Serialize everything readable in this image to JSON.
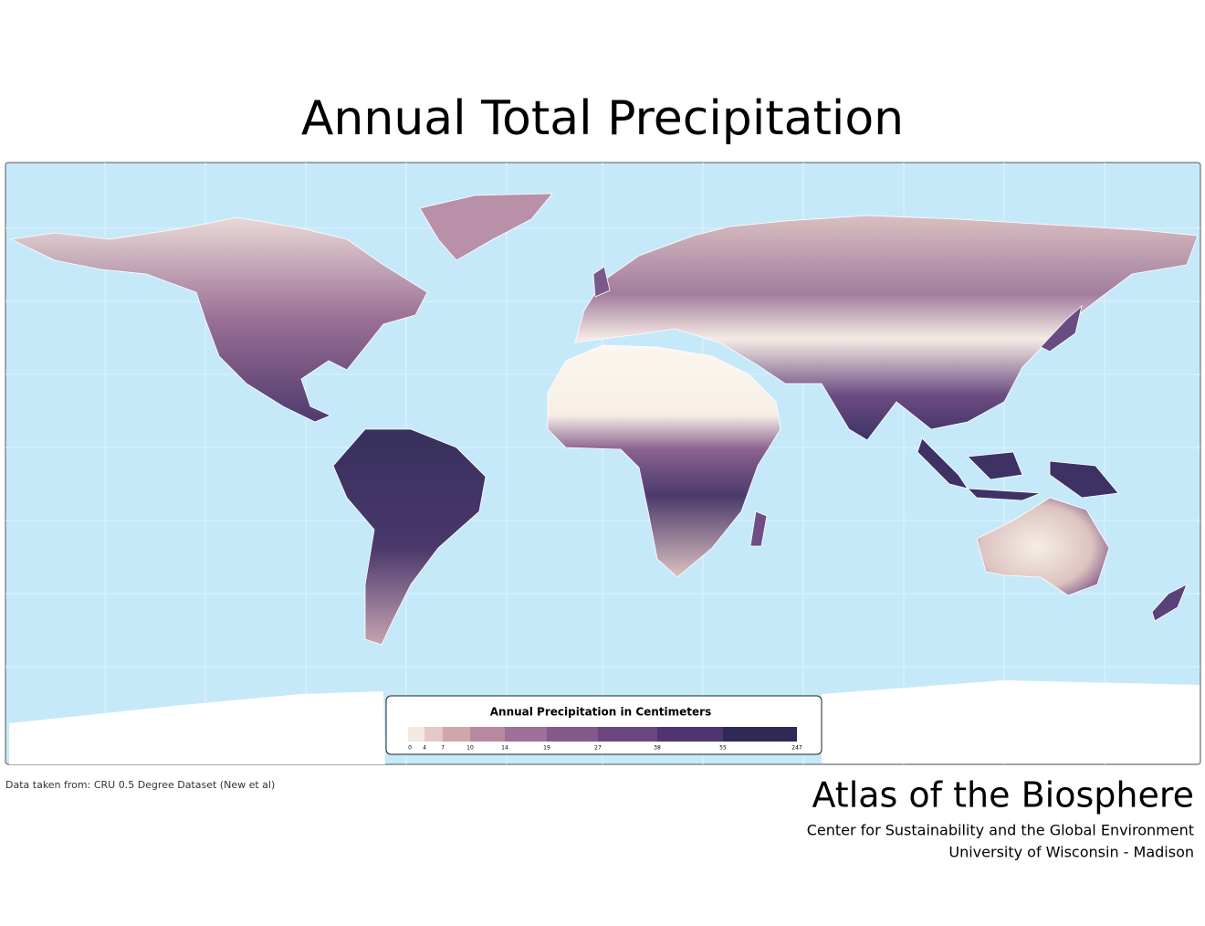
{
  "title": "Annual Total Precipitation",
  "legend": {
    "title": "Annual Precipitation in Centimeters",
    "breaks": [
      0,
      4,
      7,
      10,
      14,
      19,
      27,
      38,
      55,
      247
    ],
    "colors": [
      "#f3e9e3",
      "#e3c9c4",
      "#cfa7ab",
      "#b98a9f",
      "#a06f98",
      "#85588c",
      "#6a4580",
      "#4e3570",
      "#2e2a55"
    ]
  },
  "source": "Data taken from: CRU 0.5 Degree Dataset (New et al)",
  "footer": {
    "title": "Atlas of the Biosphere",
    "lines": [
      "Center for Sustainability and the Global Environment",
      "University of Wisconsin - Madison"
    ]
  }
}
